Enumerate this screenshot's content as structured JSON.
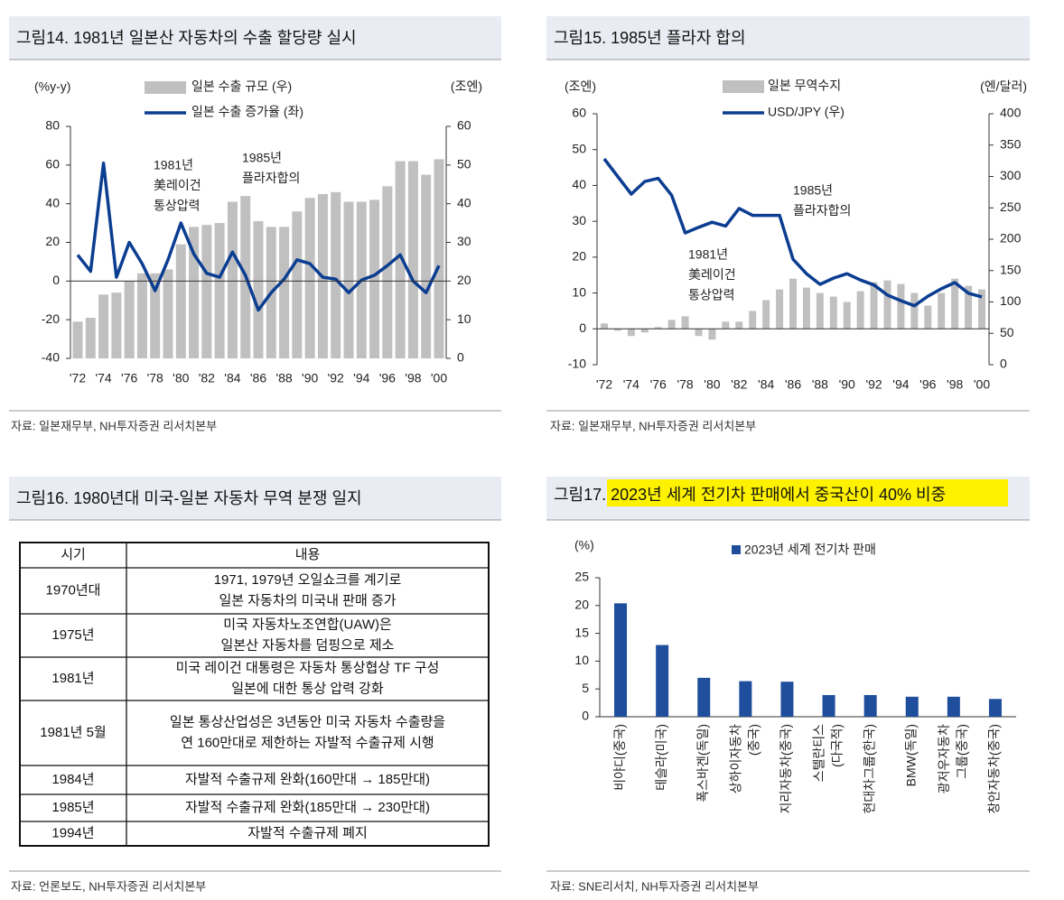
{
  "chart_data": [
    {
      "type": "combo",
      "title": "그림14. 1981년 일본산 자동차의 수출 할당량 실시",
      "ylabel": "(%y-y)",
      "y2label": "(조엔)",
      "categories": [
        "'72",
        null,
        "'74",
        null,
        "'76",
        null,
        "'78",
        null,
        "'80",
        null,
        "'82",
        null,
        "'84",
        null,
        "'86",
        null,
        "'88",
        null,
        "'90",
        null,
        "'92",
        null,
        "'94",
        null,
        "'96",
        null,
        "'98",
        null,
        "'00"
      ],
      "series": [
        {
          "name": "일본 수출 규모 (우)",
          "type": "bar",
          "axis": "y2",
          "color": "#c0c0c0",
          "values": [
            9.5,
            10.5,
            16.5,
            17,
            20,
            22,
            22,
            23,
            29.5,
            34,
            34.5,
            35,
            40.5,
            42,
            35.5,
            34,
            34,
            38,
            41.5,
            42.5,
            43,
            40.5,
            40.5,
            41,
            44.5,
            51,
            51,
            47.5,
            51.5
          ]
        },
        {
          "name": "일본 수출 증가율 (좌)",
          "type": "line",
          "color": "#0b3d91",
          "values": [
            13.5,
            5,
            61,
            2,
            20,
            9,
            -5,
            11,
            30,
            14,
            4,
            2,
            15,
            3,
            -15,
            -6,
            1,
            11,
            9,
            2,
            1,
            -6,
            0.5,
            3,
            8,
            13.5,
            0,
            -6,
            8
          ]
        }
      ],
      "ylim": [
        -40,
        80
      ],
      "yticks": [
        -40,
        -20,
        0,
        20,
        40,
        60,
        80
      ],
      "y2lim": [
        0,
        60
      ],
      "y2ticks": [
        0,
        10,
        20,
        30,
        40,
        50,
        60
      ],
      "annotations": [
        {
          "text": [
            "1981년",
            "美레이건",
            "통상압력"
          ]
        },
        {
          "text": [
            "1985년",
            "플라자합의"
          ]
        }
      ],
      "source": "자료: 일본재무부, NH투자증권 리서치본부"
    },
    {
      "type": "combo",
      "title": "그림15. 1985년 플라자 합의",
      "ylabel": "(조엔)",
      "y2label": "(엔/달러)",
      "categories": [
        "'72",
        null,
        "'74",
        null,
        "'76",
        null,
        "'78",
        null,
        "'80",
        null,
        "'82",
        null,
        "'84",
        null,
        "'86",
        null,
        "'88",
        null,
        "'90",
        null,
        "'92",
        null,
        "'94",
        null,
        "'96",
        null,
        "'98",
        null,
        "'00"
      ],
      "series": [
        {
          "name": "일본 무역수지",
          "type": "bar",
          "color": "#c0c0c0",
          "values": [
            1.5,
            -0.5,
            -2,
            -1,
            0.5,
            2.5,
            3.5,
            -2,
            -3,
            2,
            2,
            5,
            8,
            11,
            14,
            11.5,
            10,
            9,
            7.5,
            10.5,
            13,
            13.5,
            12.5,
            10,
            6.5,
            10,
            14,
            12,
            11
          ]
        },
        {
          "name": "USD/JPY (우)",
          "type": "line",
          "axis": "y2",
          "color": "#0b3d91",
          "values": [
            328,
            300,
            272,
            292,
            297,
            270,
            210,
            219,
            227,
            221,
            249,
            238,
            238,
            238,
            168,
            145,
            128,
            138,
            145,
            135,
            127,
            111,
            102,
            94,
            109,
            121,
            131,
            114,
            108
          ]
        }
      ],
      "ylim": [
        -10,
        60
      ],
      "yticks": [
        -10,
        0,
        10,
        20,
        30,
        40,
        50,
        60
      ],
      "y2lim": [
        0,
        400
      ],
      "y2ticks": [
        0,
        50,
        100,
        150,
        200,
        250,
        300,
        350,
        400
      ],
      "annotations": [
        {
          "text": [
            "1985년",
            "플라자합의"
          ]
        },
        {
          "text": [
            "1981년",
            "美레이건",
            "통상압력"
          ]
        }
      ],
      "source": "자료: 일본재무부, NH투자증권 리서치본부"
    },
    {
      "type": "bar",
      "title": "그림17. 2023년 세계 전기차 판매에서 중국산이 40% 비중",
      "ylabel": "(%)",
      "categories": [
        "비야디(중국)",
        "테슬라(미국)",
        "폭스바겐(독일)",
        "상하이자동차(중국)",
        "지리자동차(중국)",
        "스텔란티스(다국적)",
        "현대차그룹(한국)",
        "BMW(독일)",
        "광저우자동차그룹(중국)",
        "창안자동차(중국)"
      ],
      "series": [
        {
          "name": "2023년 세계 전기차 판매",
          "color": "#1f4e9c",
          "values": [
            20.4,
            12.9,
            7.0,
            6.4,
            6.3,
            3.9,
            3.9,
            3.6,
            3.6,
            3.2
          ]
        }
      ],
      "ylim": [
        0,
        25
      ],
      "yticks": [
        0,
        5,
        10,
        15,
        20,
        25
      ],
      "source": "자료: SNE리서치, NH투자증권 리서치본부"
    }
  ],
  "table": {
    "title": "그림16. 1980년대 미국-일본 자동차 무역 분쟁 일지",
    "header": [
      "시기",
      "내용"
    ],
    "rows": [
      [
        "1970년대",
        [
          "1971, 1979년 오일쇼크를 계기로",
          "일본 자동차의 미국내 판매 증가"
        ]
      ],
      [
        "1975년",
        [
          "미국 자동차노조연합(UAW)은",
          "일본산 자동차를 덤핑으로 제소"
        ]
      ],
      [
        "1981년",
        [
          "미국 레이건 대통령은 자동차 통상협상 TF 구성",
          "일본에 대한 통상 압력 강화"
        ]
      ],
      [
        "1981년 5월",
        [
          "일본 통상산업성은 3년동안 미국 자동차 수출량을",
          "연 160만대로 제한하는 자발적 수출규제 시행"
        ]
      ],
      [
        "1984년",
        [
          "자발적 수출규제 완화(160만대 → 185만대)"
        ]
      ],
      [
        "1985년",
        [
          "자발적 수출규제 완화(185만대 → 230만대)"
        ]
      ],
      [
        "1994년",
        [
          "자발적 수출규제 폐지"
        ]
      ]
    ],
    "source": "자료: 언론보도, NH투자증권 리서치본부"
  }
}
